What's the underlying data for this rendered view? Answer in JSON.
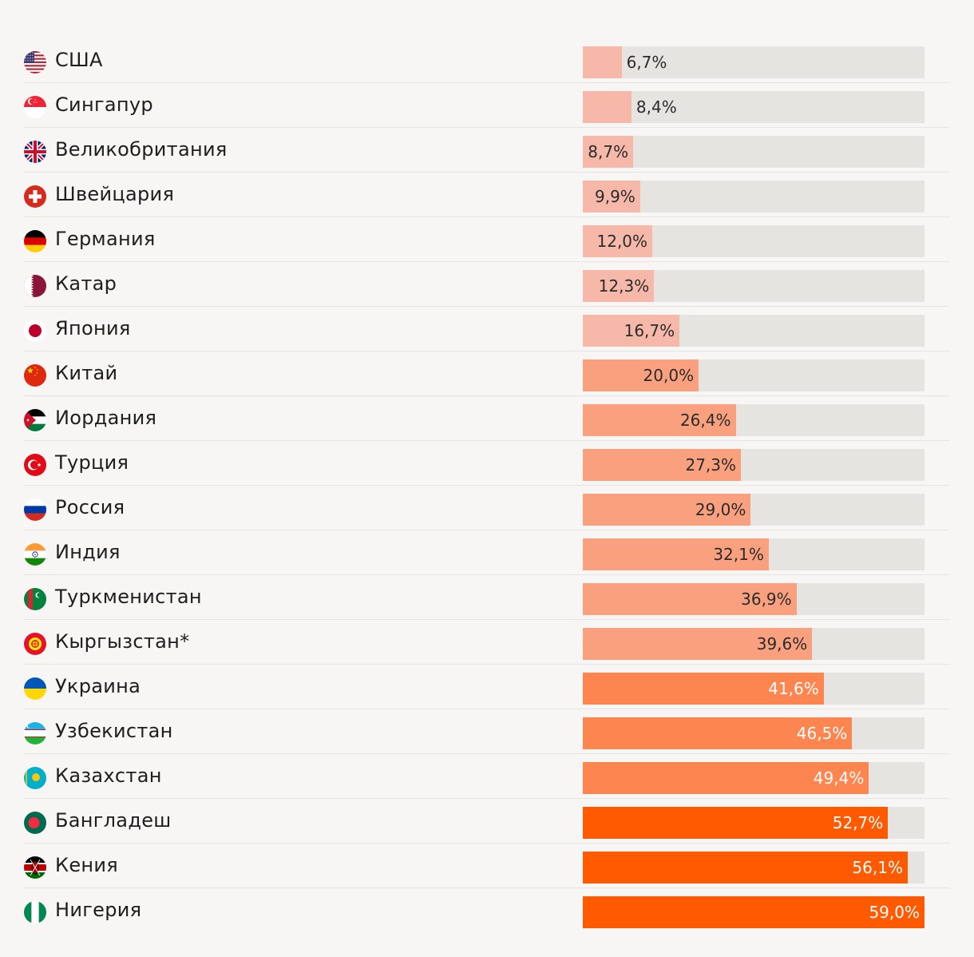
{
  "chart_data": {
    "type": "bar",
    "orientation": "horizontal",
    "xlim": [
      0,
      59.0
    ],
    "categories": [
      "США",
      "Сингапур",
      "Великобритания",
      "Швейцария",
      "Германия",
      "Катар",
      "Япония",
      "Китай",
      "Иордания",
      "Турция",
      "Россия",
      "Индия",
      "Туркменистан",
      "Кыргызстан*",
      "Украина",
      "Узбекистан",
      "Казахстан",
      "Бангладеш",
      "Кения",
      "Нигерия"
    ],
    "values": [
      6.7,
      8.4,
      8.7,
      9.9,
      12.0,
      12.3,
      16.7,
      20.0,
      26.4,
      27.3,
      29.0,
      32.1,
      36.9,
      39.6,
      41.6,
      46.5,
      49.4,
      52.7,
      56.1,
      59.0
    ],
    "value_labels": [
      "6,7%",
      "8,4%",
      "8,7%",
      "9,9%",
      "12,0%",
      "12,3%",
      "16,7%",
      "20,0%",
      "26,4%",
      "27,3%",
      "29,0%",
      "32,1%",
      "36,9%",
      "39,6%",
      "41,6%",
      "46,5%",
      "49,4%",
      "52,7%",
      "56,1%",
      "59,0%"
    ],
    "flags": [
      "flag-usa-icon",
      "flag-singapore-icon",
      "flag-uk-icon",
      "flag-switzerland-icon",
      "flag-germany-icon",
      "flag-qatar-icon",
      "flag-japan-icon",
      "flag-china-icon",
      "flag-jordan-icon",
      "flag-turkey-icon",
      "flag-russia-icon",
      "flag-india-icon",
      "flag-turkmenistan-icon",
      "flag-kyrgyzstan-icon",
      "flag-ukraine-icon",
      "flag-uzbekistan-icon",
      "flag-kazakhstan-icon",
      "flag-bangladesh-icon",
      "flag-kenya-icon",
      "flag-nigeria-icon"
    ],
    "color_bins": [
      {
        "max": 17,
        "bar": "#f6b8a8",
        "label": "#2b2b2b"
      },
      {
        "max": 40,
        "bar": "#f9a07f",
        "label": "#2b2b2b"
      },
      {
        "max": 50,
        "bar": "#fd8550",
        "label": "#ffffff"
      },
      {
        "max": 100,
        "bar": "#ff5a00",
        "label": "#ffffff"
      }
    ],
    "track_color": "#e6e4e1"
  }
}
